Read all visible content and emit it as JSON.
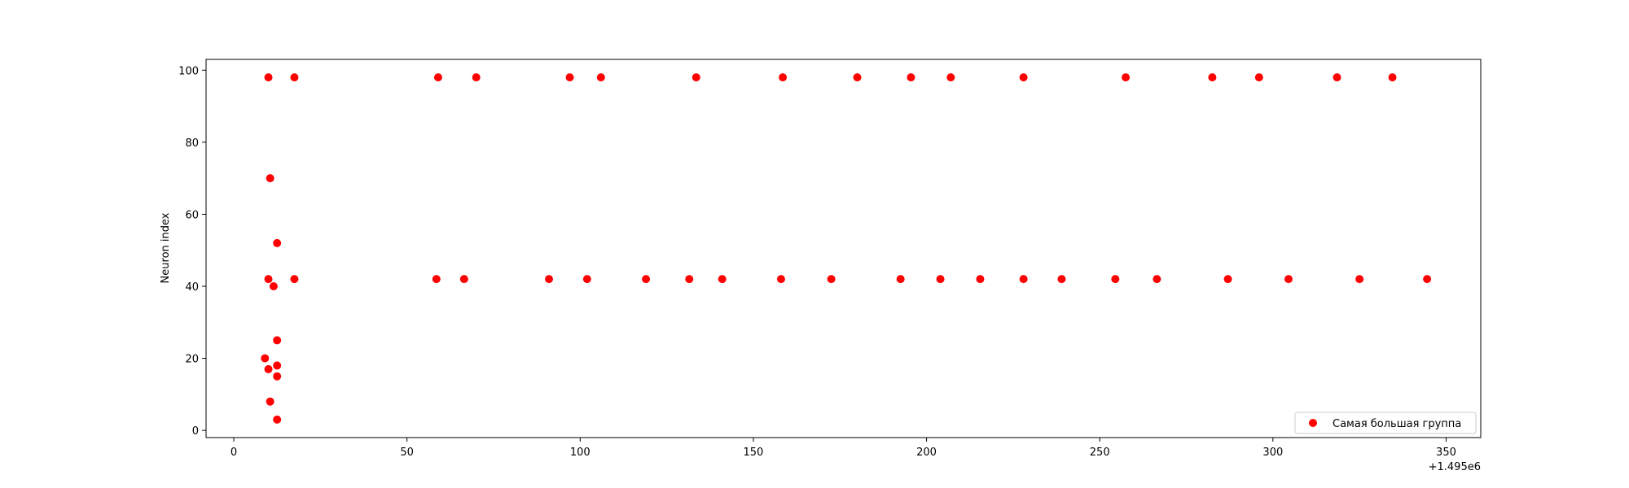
{
  "chart_data": {
    "type": "scatter",
    "title": "",
    "xlabel": "",
    "ylabel": "Neuron index",
    "x_offset_label": "+1.495e6",
    "xlim": [
      1494992,
      1495360
    ],
    "ylim": [
      -2,
      103
    ],
    "xticks": [
      0,
      50,
      100,
      150,
      200,
      250,
      300,
      350
    ],
    "xtick_labels": [
      "0",
      "50",
      "100",
      "150",
      "200",
      "250",
      "300",
      "350"
    ],
    "yticks": [
      0,
      20,
      40,
      60,
      80,
      100
    ],
    "ytick_labels": [
      "0",
      "20",
      "40",
      "60",
      "80",
      "100"
    ],
    "grid": false,
    "legend": {
      "position": "lower-right",
      "entries": [
        "Самая большая группа"
      ]
    },
    "series": [
      {
        "name": "Самая большая группа",
        "color": "#ff0000",
        "points": [
          [
            1495010,
            98
          ],
          [
            1495017.5,
            98
          ],
          [
            1495059,
            98
          ],
          [
            1495070,
            98
          ],
          [
            1495097,
            98
          ],
          [
            1495106,
            98
          ],
          [
            1495133.5,
            98
          ],
          [
            1495158.5,
            98
          ],
          [
            1495180,
            98
          ],
          [
            1495195.5,
            98
          ],
          [
            1495207,
            98
          ],
          [
            1495228,
            98
          ],
          [
            1495257.5,
            98
          ],
          [
            1495282.5,
            98
          ],
          [
            1495296,
            98
          ],
          [
            1495318.5,
            98
          ],
          [
            1495334.5,
            98
          ],
          [
            1495010.5,
            70
          ],
          [
            1495012.5,
            52
          ],
          [
            1495010,
            42
          ],
          [
            1495017.5,
            42
          ],
          [
            1495058.5,
            42
          ],
          [
            1495066.5,
            42
          ],
          [
            1495091,
            42
          ],
          [
            1495102,
            42
          ],
          [
            1495119,
            42
          ],
          [
            1495131.5,
            42
          ],
          [
            1495141,
            42
          ],
          [
            1495158,
            42
          ],
          [
            1495172.5,
            42
          ],
          [
            1495192.5,
            42
          ],
          [
            1495204,
            42
          ],
          [
            1495215.5,
            42
          ],
          [
            1495228,
            42
          ],
          [
            1495239,
            42
          ],
          [
            1495254.5,
            42
          ],
          [
            1495266.5,
            42
          ],
          [
            1495287,
            42
          ],
          [
            1495304.5,
            42
          ],
          [
            1495325,
            42
          ],
          [
            1495344.5,
            42
          ],
          [
            1495011.5,
            40
          ],
          [
            1495012.5,
            25
          ],
          [
            1495009,
            20
          ],
          [
            1495010,
            17
          ],
          [
            1495012.5,
            18
          ],
          [
            1495012.5,
            15
          ],
          [
            1495010.5,
            8
          ],
          [
            1495012.5,
            3
          ]
        ]
      }
    ]
  }
}
